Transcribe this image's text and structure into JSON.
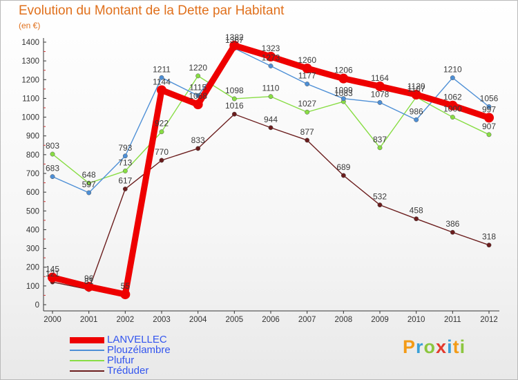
{
  "title": "Evolution du Montant de la Dette par Habitant",
  "subtitle": "(en €)",
  "brand": "Proxiti",
  "chart_data": {
    "type": "line",
    "x": [
      "2000",
      "2001",
      "2002",
      "2003",
      "2004",
      "2005",
      "2006",
      "2007",
      "2008",
      "2009",
      "2010",
      "2011",
      "2012"
    ],
    "ylim": [
      0,
      1400
    ],
    "yticks": [
      0,
      100,
      200,
      300,
      400,
      500,
      600,
      700,
      800,
      900,
      1000,
      1100,
      1200,
      1300,
      1400
    ],
    "grid": false,
    "legend_position": "bottom-left",
    "series": [
      {
        "name": "LANVELLEC",
        "color": "#ee0000",
        "values": [
          145,
          96,
          55,
          1144,
          1068,
          1382,
          1323,
          1260,
          1206,
          1164,
          1120,
          1062,
          997
        ]
      },
      {
        "name": "Plouzélambre",
        "color": "#4d8fd6",
        "values": [
          683,
          597,
          793,
          1211,
          1115,
          1367,
          1273,
          1177,
          1099,
          1078,
          986,
          1210,
          1056
        ]
      },
      {
        "name": "Plufur",
        "color": "#88dd44",
        "values": [
          803,
          648,
          713,
          922,
          1220,
          1098,
          1110,
          1027,
          1083,
          837,
          1107,
          1000,
          907
        ]
      },
      {
        "name": "Tréduder",
        "color": "#6b1d1d",
        "values": [
          121,
          81,
          617,
          770,
          833,
          1016,
          944,
          877,
          689,
          532,
          458,
          386,
          318
        ]
      }
    ]
  }
}
